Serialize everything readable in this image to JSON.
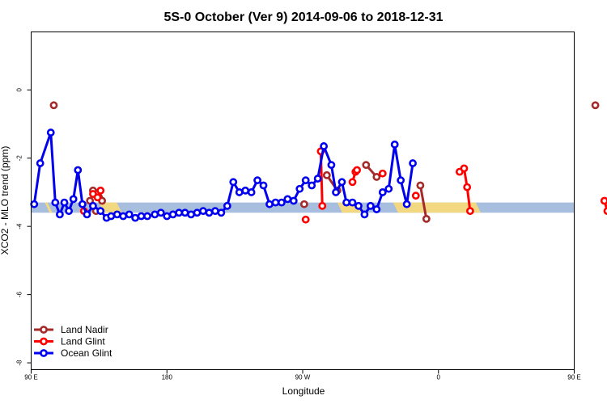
{
  "chart_data": {
    "type": "line",
    "title": "5S-0 October (Ver 9)   2014-09-06 to 2018-12-31",
    "xlabel": "Longitude",
    "ylabel": "XCO2 - MLO trend (ppm)",
    "xlim": [
      90,
      450
    ],
    "ylim": [
      -8.2,
      1.7
    ],
    "x_ticks": [
      {
        "value": 90,
        "label": "90 E"
      },
      {
        "value": 180,
        "label": "180"
      },
      {
        "value": 270,
        "label": "90 W"
      },
      {
        "value": 360,
        "label": "0"
      },
      {
        "value": 450,
        "label": "90 E"
      },
      {
        "value": 540,
        "label": "180"
      }
    ],
    "y_ticks": [
      {
        "value": 0,
        "label": "0"
      },
      {
        "value": -2,
        "label": "-2"
      },
      {
        "value": -4,
        "label": "-4"
      },
      {
        "value": -6,
        "label": "-6"
      },
      {
        "value": -8,
        "label": "-8"
      }
    ],
    "grid": false,
    "legend_position": "bottom-left",
    "surface_band": {
      "y_range": [
        -3.6,
        -3.3
      ],
      "ocean_color": "#a8bedf",
      "land_color": "#f3d882",
      "land_segments": [
        [
          99,
          104
        ],
        [
          135,
          150
        ],
        [
          293,
          311
        ],
        [
          330,
          388
        ],
        [
          484,
          493
        ],
        [
          515,
          520
        ]
      ]
    },
    "series": [
      {
        "name": "Land Nadir",
        "color": "#a52a2a",
        "segments": [
          [
            [
              105,
              -0.45
            ]
          ],
          [
            [
              129,
              -3.25
            ],
            [
              133,
              -3.55
            ]
          ],
          [
            [
              131,
              -2.95
            ],
            [
              135,
              -3.15
            ],
            [
              137,
              -3.25
            ]
          ],
          [
            [
              271,
              -3.35
            ]
          ],
          [
            [
              286,
              -2.5
            ],
            [
              293,
              -2.95
            ]
          ],
          [
            [
              312,
              -2.2
            ],
            [
              319,
              -2.55
            ]
          ],
          [
            [
              348,
              -2.8
            ],
            [
              352,
              -3.78
            ]
          ],
          [
            [
              464,
              -0.45
            ]
          ],
          [
            [
              481,
              -2.95
            ],
            [
              485,
              -3.15
            ],
            [
              487,
              -3.25
            ]
          ],
          [
            [
              491,
              -3.85
            ]
          ]
        ]
      },
      {
        "name": "Land Glint",
        "color": "#ff0000",
        "segments": [
          [
            [
              125,
              -3.55
            ]
          ],
          [
            [
              131,
              -3.05
            ],
            [
              134,
              -3.15
            ],
            [
              136,
              -2.95
            ]
          ],
          [
            [
              272,
              -3.8
            ]
          ],
          [
            [
              282,
              -1.8
            ],
            [
              283,
              -3.4
            ]
          ],
          [
            [
              303,
              -2.7
            ],
            [
              305,
              -2.4
            ],
            [
              306,
              -2.35
            ]
          ],
          [
            [
              323,
              -2.45
            ]
          ],
          [
            [
              345,
              -3.1
            ]
          ],
          [
            [
              374,
              -2.4
            ],
            [
              377,
              -2.3
            ],
            [
              379,
              -2.85
            ],
            [
              381,
              -3.55
            ]
          ],
          [
            [
              470,
              -3.25
            ],
            [
              472,
              -3.55
            ]
          ],
          [
            [
              484,
              -3.0
            ]
          ]
        ]
      },
      {
        "name": "Ocean Glint",
        "color": "#0000ee",
        "segmented_points": [
          [
            92,
            -3.35
          ],
          [
            96,
            -2.15
          ],
          [
            103,
            -1.25
          ],
          [
            106,
            -3.3
          ],
          [
            109,
            -3.65
          ],
          [
            112,
            -3.3
          ],
          [
            115,
            -3.55
          ],
          [
            118,
            -3.2
          ],
          [
            121,
            -2.35
          ],
          [
            124,
            -3.35
          ],
          [
            127,
            -3.65
          ],
          [
            131,
            -3.4
          ],
          [
            136,
            -3.55
          ],
          [
            140,
            -3.75
          ],
          [
            143,
            -3.7
          ],
          [
            147,
            -3.65
          ],
          [
            151,
            -3.7
          ],
          [
            155,
            -3.65
          ],
          [
            159,
            -3.75
          ],
          [
            163,
            -3.7
          ],
          [
            167,
            -3.7
          ],
          [
            172,
            -3.65
          ],
          [
            176,
            -3.6
          ],
          [
            180,
            -3.7
          ],
          [
            184,
            -3.65
          ],
          [
            188,
            -3.6
          ],
          [
            192,
            -3.6
          ],
          [
            196,
            -3.65
          ],
          [
            200,
            -3.6
          ],
          [
            204,
            -3.55
          ],
          [
            208,
            -3.6
          ],
          [
            212,
            -3.55
          ],
          [
            216,
            -3.6
          ],
          [
            220,
            -3.4
          ],
          [
            224,
            -2.7
          ],
          [
            228,
            -3.0
          ],
          [
            232,
            -2.95
          ],
          [
            236,
            -3.0
          ],
          [
            240,
            -2.65
          ],
          [
            244,
            -2.8
          ],
          [
            248,
            -3.35
          ],
          [
            252,
            -3.3
          ],
          [
            256,
            -3.3
          ],
          [
            260,
            -3.2
          ],
          [
            264,
            -3.25
          ],
          [
            268,
            -2.9
          ],
          [
            272,
            -2.65
          ],
          [
            276,
            -2.8
          ],
          [
            280,
            -2.6
          ],
          [
            284,
            -1.65
          ],
          [
            289,
            -2.2
          ],
          [
            292,
            -3.0
          ],
          [
            296,
            -2.7
          ],
          [
            299,
            -3.3
          ],
          [
            303,
            -3.3
          ],
          [
            307,
            -3.4
          ],
          [
            311,
            -3.65
          ],
          [
            315,
            -3.4
          ],
          [
            319,
            -3.5
          ],
          [
            323,
            -3.0
          ],
          [
            327,
            -2.9
          ],
          [
            331,
            -1.6
          ],
          [
            335,
            -2.65
          ],
          [
            339,
            -3.35
          ],
          [
            343,
            -2.15
          ]
        ]
      }
    ],
    "legend": [
      {
        "label": "Land Nadir",
        "color": "#a52a2a"
      },
      {
        "label": "Land Glint",
        "color": "#ff0000"
      },
      {
        "label": "Ocean Glint",
        "color": "#0000ee"
      }
    ]
  }
}
